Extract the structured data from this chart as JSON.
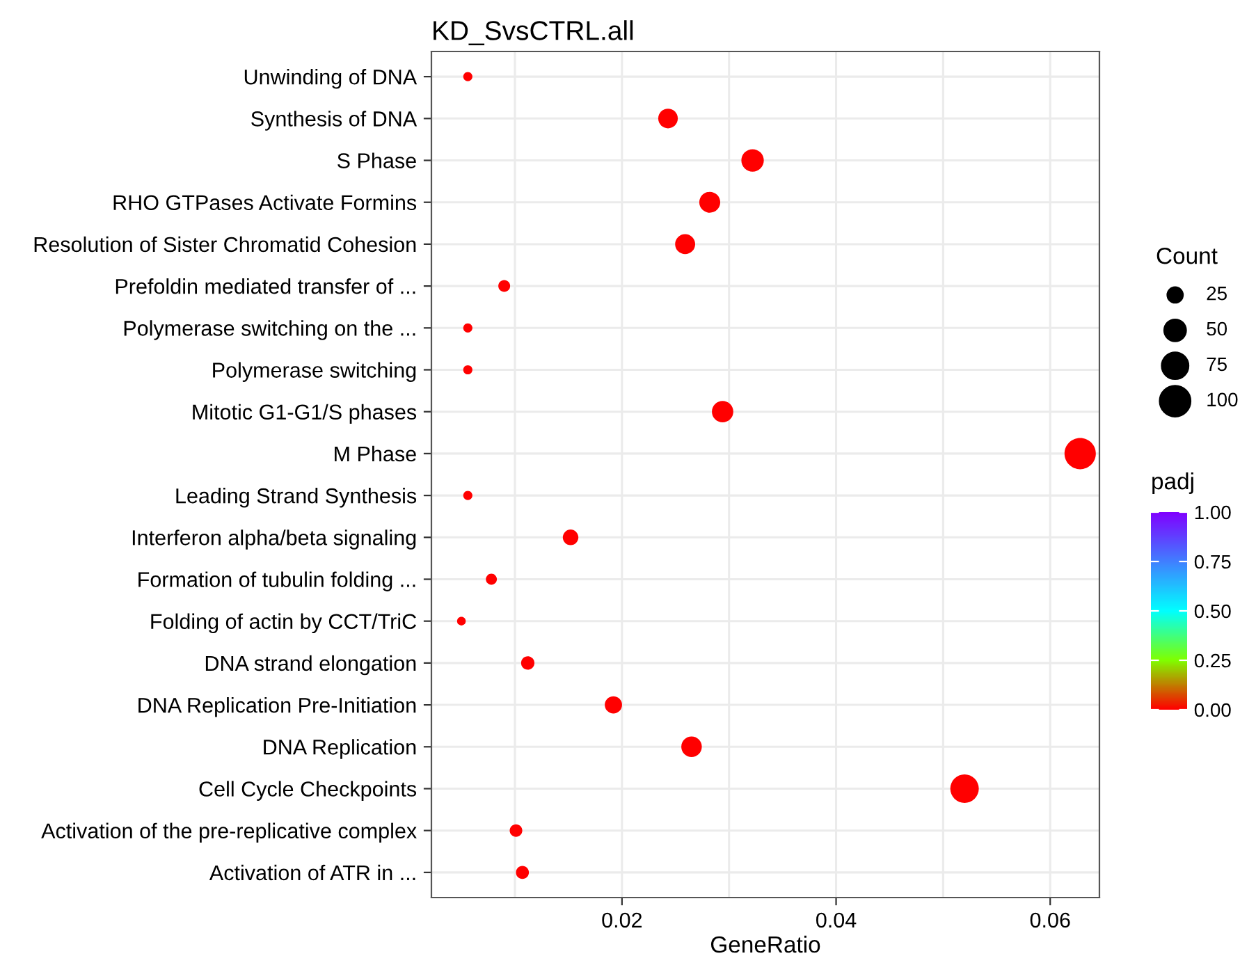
{
  "chart_data": {
    "type": "bubble",
    "title": "KD_SvsCTRL.all",
    "xlabel": "GeneRatio",
    "legend_title": "Count",
    "clabel": "padj",
    "orientation": "horizontal",
    "categories": [
      "Unwinding of DNA",
      "Synthesis of DNA",
      "S Phase",
      "RHO GTPases Activate Formins",
      "Resolution of Sister Chromatid Cohesion",
      "Prefoldin mediated transfer of ...",
      "Polymerase switching on the ...",
      "Polymerase switching",
      "Mitotic G1-G1/S phases",
      "M Phase",
      "Leading Strand Synthesis",
      "Interferon alpha/beta signaling",
      "Formation of tubulin folding ...",
      "Folding of actin by CCT/TriC",
      "DNA strand elongation",
      "DNA Replication Pre-Initiation",
      "DNA Replication",
      "Cell Cycle Checkpoints",
      "Activation of the pre-replicative complex",
      "Activation of ATR in ..."
    ],
    "values": [
      0.0056,
      0.0243,
      0.0322,
      0.0282,
      0.0259,
      0.009,
      0.0056,
      0.0056,
      0.0294,
      0.0628,
      0.0056,
      0.0152,
      0.0078,
      0.005,
      0.0112,
      0.0192,
      0.0265,
      0.052,
      0.0101,
      0.0107
    ],
    "sizes": [
      9,
      41,
      54,
      47,
      43,
      15,
      9,
      9,
      49,
      105,
      9,
      26,
      13,
      8,
      19,
      32,
      45,
      87,
      17,
      18
    ],
    "size_legend": [
      25,
      50,
      75,
      100
    ],
    "cvalues": [
      0,
      0,
      0,
      0,
      0,
      0,
      0,
      0,
      0,
      0,
      0,
      0,
      0,
      0,
      0,
      0,
      0,
      0,
      0,
      0
    ],
    "clim": [
      0,
      1
    ],
    "cticks": [
      {
        "value": 0,
        "label": "0.00"
      },
      {
        "value": 0.25,
        "label": "0.25"
      },
      {
        "value": 0.5,
        "label": "0.50"
      },
      {
        "value": 0.75,
        "label": "0.75"
      },
      {
        "value": 1,
        "label": "1.00"
      }
    ],
    "xlim": [
      0.0022,
      0.0646
    ],
    "xticks": [
      {
        "value": 0.01,
        "label": null
      },
      0.02,
      {
        "value": 0.03,
        "label": null
      },
      0.04,
      {
        "value": 0.05,
        "label": null
      },
      0.06
    ],
    "grid": true
  }
}
